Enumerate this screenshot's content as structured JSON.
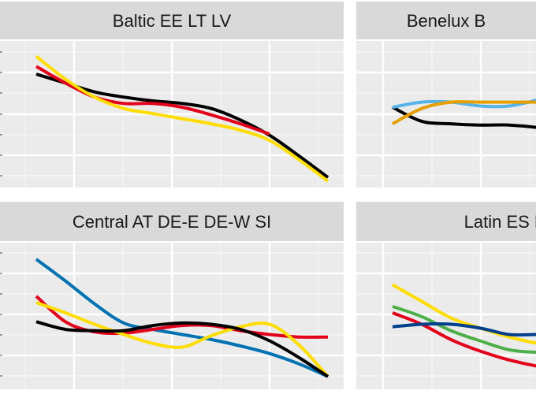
{
  "chart_data": [
    {
      "type": "line",
      "title": "Baltic EE LT LV",
      "series": [
        {
          "color": "#000000",
          "x": [
            0,
            10,
            20,
            30,
            40,
            50,
            60,
            70,
            80,
            90,
            100
          ],
          "y": [
            0.84,
            0.77,
            0.7,
            0.66,
            0.63,
            0.61,
            0.57,
            0.48,
            0.36,
            0.2,
            0.03
          ]
        },
        {
          "color": "#E2001A",
          "x": [
            0,
            10,
            20,
            30,
            40,
            50,
            60,
            70,
            80
          ],
          "y": [
            0.9,
            0.77,
            0.66,
            0.61,
            0.61,
            0.58,
            0.52,
            0.45,
            0.37
          ]
        },
        {
          "color": "#FFDD00",
          "x": [
            0,
            10,
            20,
            30,
            40,
            50,
            60,
            70,
            80,
            90,
            100
          ],
          "y": [
            0.98,
            0.8,
            0.66,
            0.57,
            0.53,
            0.49,
            0.45,
            0.4,
            0.32,
            0.17,
            0.0
          ]
        }
      ]
    },
    {
      "type": "line",
      "title": "Benelux B",
      "series": [
        {
          "color": "#000000",
          "x": [
            0,
            10,
            20,
            30,
            40,
            50,
            60
          ],
          "y": [
            0.58,
            0.47,
            0.45,
            0.44,
            0.44,
            0.42,
            0.38
          ]
        },
        {
          "color": "#56B4E9",
          "x": [
            0,
            10,
            20,
            30,
            40,
            50,
            60
          ],
          "y": [
            0.58,
            0.62,
            0.62,
            0.59,
            0.59,
            0.64,
            0.71
          ]
        },
        {
          "color": "#E69F00",
          "x": [
            0,
            10,
            20,
            30,
            40,
            50,
            60
          ],
          "y": [
            0.45,
            0.57,
            0.62,
            0.62,
            0.62,
            0.62,
            0.62
          ]
        }
      ]
    },
    {
      "type": "line",
      "title": "Central AT DE-E DE-W SI",
      "series": [
        {
          "color": "#0072B2",
          "x": [
            0,
            10,
            20,
            30,
            40,
            50,
            60,
            70,
            80,
            90,
            100
          ],
          "y": [
            0.97,
            0.8,
            0.62,
            0.47,
            0.42,
            0.38,
            0.34,
            0.29,
            0.23,
            0.15,
            0.05
          ]
        },
        {
          "color": "#E2001A",
          "x": [
            0,
            10,
            20,
            30,
            40,
            50,
            60,
            70,
            80,
            90,
            100
          ],
          "y": [
            0.68,
            0.48,
            0.4,
            0.39,
            0.42,
            0.45,
            0.45,
            0.41,
            0.38,
            0.36,
            0.36
          ]
        },
        {
          "color": "#FFDD00",
          "x": [
            0,
            10,
            20,
            30,
            40,
            50,
            60,
            70,
            80,
            90,
            100
          ],
          "y": [
            0.63,
            0.55,
            0.46,
            0.38,
            0.31,
            0.28,
            0.37,
            0.44,
            0.46,
            0.3,
            0.05
          ]
        },
        {
          "color": "#000000",
          "x": [
            0,
            10,
            20,
            30,
            40,
            50,
            60,
            70,
            80,
            90,
            100
          ],
          "y": [
            0.48,
            0.42,
            0.41,
            0.41,
            0.45,
            0.47,
            0.46,
            0.42,
            0.33,
            0.2,
            0.05
          ]
        }
      ]
    },
    {
      "type": "line",
      "title": "Latin ES F",
      "series": [
        {
          "color": "#FFDD00",
          "x": [
            0,
            10,
            20,
            30,
            40,
            50,
            60
          ],
          "y": [
            0.77,
            0.64,
            0.51,
            0.43,
            0.36,
            0.31,
            0.29
          ]
        },
        {
          "color": "#4DAF4A",
          "x": [
            0,
            10,
            20,
            30,
            40,
            50,
            60
          ],
          "y": [
            0.6,
            0.52,
            0.41,
            0.33,
            0.26,
            0.24,
            0.24
          ]
        },
        {
          "color": "#E2001A",
          "x": [
            0,
            10,
            20,
            30,
            40,
            50,
            60
          ],
          "y": [
            0.55,
            0.46,
            0.34,
            0.25,
            0.18,
            0.13,
            0.1
          ]
        },
        {
          "color": "#003F8C",
          "x": [
            0,
            10,
            20,
            30,
            40,
            50,
            60
          ],
          "y": [
            0.44,
            0.46,
            0.46,
            0.43,
            0.38,
            0.38,
            0.38
          ]
        }
      ]
    }
  ]
}
